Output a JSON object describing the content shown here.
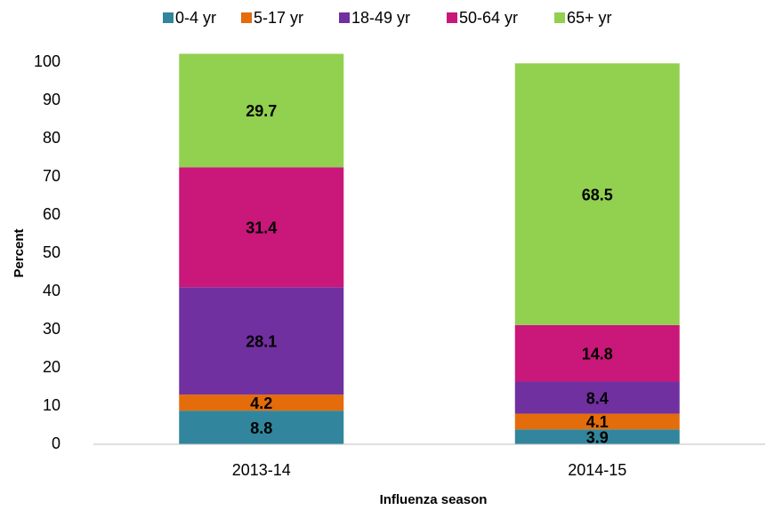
{
  "chart_data": {
    "type": "stacked_bar",
    "categories": [
      "2013-14",
      "2014-15"
    ],
    "series": [
      {
        "name": "0-4 yr",
        "color": "#31859c",
        "values": [
          8.8,
          3.9
        ]
      },
      {
        "name": "5-17 yr",
        "color": "#e46c0a",
        "values": [
          4.2,
          4.1
        ]
      },
      {
        "name": "18-49 yr",
        "color": "#7030a0",
        "values": [
          28.1,
          8.4
        ]
      },
      {
        "name": "50-64 yr",
        "color": "#c9177a",
        "values": [
          31.4,
          14.8
        ]
      },
      {
        "name": "65+ yr",
        "color": "#92d050",
        "values": [
          29.7,
          68.5
        ]
      }
    ],
    "ylim": [
      0,
      100
    ],
    "yticks": [
      0,
      10,
      20,
      30,
      40,
      50,
      60,
      70,
      80,
      90,
      100
    ],
    "xlabel": "Influenza season",
    "ylabel": "Percent",
    "legend": "top"
  }
}
